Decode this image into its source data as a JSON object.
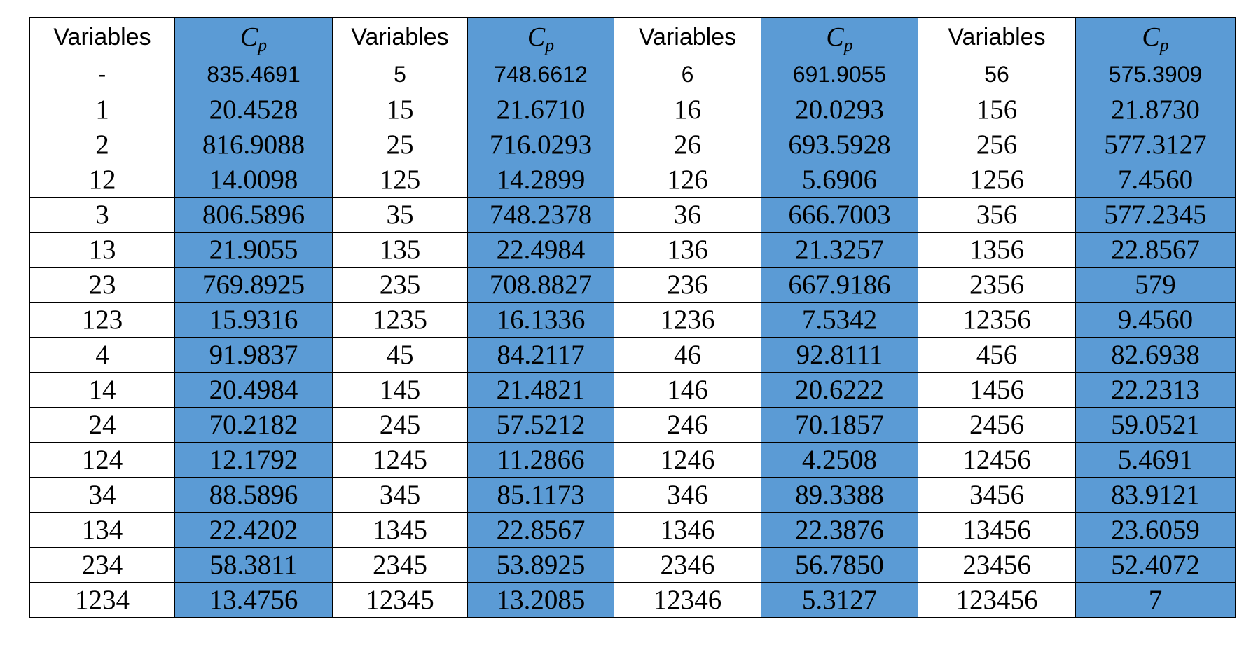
{
  "table": {
    "headers": [
      {
        "kind": "var",
        "label": "Variables"
      },
      {
        "kind": "cp",
        "main": "C",
        "sub": "p"
      },
      {
        "kind": "var",
        "label": "Variables"
      },
      {
        "kind": "cp",
        "main": "C",
        "sub": "p"
      },
      {
        "kind": "var",
        "label": "Variables"
      },
      {
        "kind": "cp",
        "main": "C",
        "sub": "p"
      },
      {
        "kind": "var",
        "label": "Variables"
      },
      {
        "kind": "cp",
        "main": "C",
        "sub": "p"
      }
    ],
    "rows": [
      [
        "-",
        "835.4691",
        "5",
        "748.6612",
        "6",
        "691.9055",
        "56",
        "575.3909"
      ],
      [
        "1",
        "20.4528",
        "15",
        "21.6710",
        "16",
        "20.0293",
        "156",
        "21.8730"
      ],
      [
        "2",
        "816.9088",
        "25",
        "716.0293",
        "26",
        "693.5928",
        "256",
        "577.3127"
      ],
      [
        "12",
        "14.0098",
        "125",
        "14.2899",
        "126",
        "5.6906",
        "1256",
        "7.4560"
      ],
      [
        "3",
        "806.5896",
        "35",
        "748.2378",
        "36",
        "666.7003",
        "356",
        "577.2345"
      ],
      [
        "13",
        "21.9055",
        "135",
        "22.4984",
        "136",
        "21.3257",
        "1356",
        "22.8567"
      ],
      [
        "23",
        "769.8925",
        "235",
        "708.8827",
        "236",
        "667.9186",
        "2356",
        "579"
      ],
      [
        "123",
        "15.9316",
        "1235",
        "16.1336",
        "1236",
        "7.5342",
        "12356",
        "9.4560"
      ],
      [
        "4",
        "91.9837",
        "45",
        "84.2117",
        "46",
        "92.8111",
        "456",
        "82.6938"
      ],
      [
        "14",
        "20.4984",
        "145",
        "21.4821",
        "146",
        "20.6222",
        "1456",
        "22.2313"
      ],
      [
        "24",
        "70.2182",
        "245",
        "57.5212",
        "246",
        "70.1857",
        "2456",
        "59.0521"
      ],
      [
        "124",
        "12.1792",
        "1245",
        "11.2866",
        "1246",
        "4.2508",
        "12456",
        "5.4691"
      ],
      [
        "34",
        "88.5896",
        "345",
        "85.1173",
        "346",
        "89.3388",
        "3456",
        "83.9121"
      ],
      [
        "134",
        "22.4202",
        "1345",
        "22.8567",
        "1346",
        "22.3876",
        "13456",
        "23.6059"
      ],
      [
        "234",
        "58.3811",
        "2345",
        "53.8925",
        "2346",
        "56.7850",
        "23456",
        "52.4072"
      ],
      [
        "1234",
        "13.4756",
        "12345",
        "13.2085",
        "12346",
        "5.3127",
        "123456",
        "7"
      ]
    ]
  },
  "colors": {
    "cp_fill": "#5b9bd5",
    "border": "#000000",
    "background": "#ffffff"
  }
}
